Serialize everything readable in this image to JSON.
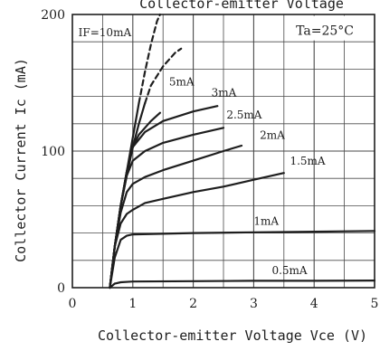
{
  "chart_data": {
    "type": "line",
    "title": "Collector-emitter Voltage",
    "xlabel": "Collector-emitter Voltage Vce (V)",
    "ylabel": "Collector Current Ic (mA)",
    "xlim": [
      0,
      5
    ],
    "ylim": [
      0,
      200
    ],
    "x_ticks": [
      "0",
      "1",
      "2",
      "3",
      "4",
      "5"
    ],
    "y_ticks": [
      "0",
      "100",
      "200"
    ],
    "grid": true,
    "annotation": "Ta=25°C",
    "series": [
      {
        "name": "IF=10mA",
        "dashed_from": 1.1,
        "points": [
          [
            0.62,
            0
          ],
          [
            0.7,
            30
          ],
          [
            0.8,
            60
          ],
          [
            0.9,
            85
          ],
          [
            1.0,
            110
          ],
          [
            1.1,
            135
          ],
          [
            1.2,
            158
          ],
          [
            1.3,
            178
          ],
          [
            1.4,
            195
          ],
          [
            1.45,
            200
          ]
        ]
      },
      {
        "name": "IF=10mA",
        "dashed_from": 1.2,
        "points": [
          [
            0.62,
            0
          ],
          [
            0.7,
            30
          ],
          [
            0.8,
            60
          ],
          [
            0.9,
            82
          ],
          [
            1.0,
            103
          ],
          [
            1.1,
            120
          ],
          [
            1.2,
            135
          ],
          [
            1.3,
            148
          ],
          [
            1.5,
            162
          ],
          [
            1.7,
            172
          ],
          [
            1.8,
            175
          ]
        ]
      },
      {
        "name": "5mA",
        "points": [
          [
            0.62,
            0
          ],
          [
            0.7,
            30
          ],
          [
            0.8,
            60
          ],
          [
            0.9,
            85
          ],
          [
            1.0,
            103
          ],
          [
            1.1,
            112
          ],
          [
            1.2,
            117
          ],
          [
            1.3,
            122
          ],
          [
            1.45,
            128
          ]
        ]
      },
      {
        "name": "3mA",
        "points": [
          [
            0.62,
            0
          ],
          [
            0.7,
            30
          ],
          [
            0.8,
            60
          ],
          [
            0.9,
            85
          ],
          [
            1.0,
            103
          ],
          [
            1.2,
            114
          ],
          [
            1.5,
            122
          ],
          [
            2.0,
            129
          ],
          [
            2.4,
            133
          ]
        ]
      },
      {
        "name": "2.5mA",
        "points": [
          [
            0.62,
            0
          ],
          [
            0.7,
            30
          ],
          [
            0.8,
            60
          ],
          [
            0.9,
            82
          ],
          [
            1.0,
            93
          ],
          [
            1.2,
            100
          ],
          [
            1.5,
            106
          ],
          [
            2.0,
            112
          ],
          [
            2.5,
            117
          ]
        ]
      },
      {
        "name": "2mA",
        "points": [
          [
            0.62,
            0
          ],
          [
            0.7,
            30
          ],
          [
            0.8,
            55
          ],
          [
            0.9,
            70
          ],
          [
            1.0,
            76
          ],
          [
            1.2,
            81
          ],
          [
            1.5,
            86
          ],
          [
            2.0,
            93
          ],
          [
            2.5,
            100
          ],
          [
            2.8,
            104
          ]
        ]
      },
      {
        "name": "1.5mA",
        "points": [
          [
            0.62,
            0
          ],
          [
            0.7,
            30
          ],
          [
            0.8,
            47
          ],
          [
            0.9,
            54
          ],
          [
            1.0,
            57
          ],
          [
            1.2,
            62
          ],
          [
            1.5,
            65
          ],
          [
            2.0,
            70
          ],
          [
            2.5,
            74
          ],
          [
            3.0,
            79
          ],
          [
            3.5,
            84
          ]
        ]
      },
      {
        "name": "1mA",
        "points": [
          [
            0.62,
            0
          ],
          [
            0.7,
            22
          ],
          [
            0.8,
            35
          ],
          [
            0.9,
            38
          ],
          [
            1.0,
            39
          ],
          [
            1.5,
            39.5
          ],
          [
            2.0,
            40
          ],
          [
            3.0,
            40.5
          ],
          [
            4.0,
            41
          ],
          [
            5.0,
            41.5
          ]
        ]
      },
      {
        "name": "0.5mA",
        "points": [
          [
            0.62,
            0
          ],
          [
            0.7,
            3
          ],
          [
            0.8,
            4
          ],
          [
            1.0,
            4.5
          ],
          [
            2.0,
            4.8
          ],
          [
            3.0,
            5
          ],
          [
            4.0,
            5
          ],
          [
            5.0,
            5.2
          ]
        ]
      }
    ],
    "curve_labels": [
      {
        "text": "IF=10mA",
        "x": 0.1,
        "y": 184
      },
      {
        "text": "5mA",
        "x": 1.6,
        "y": 148
      },
      {
        "text": "3mA",
        "x": 2.3,
        "y": 140
      },
      {
        "text": "2.5mA",
        "x": 2.55,
        "y": 124
      },
      {
        "text": "2mA",
        "x": 3.1,
        "y": 109
      },
      {
        "text": "1.5mA",
        "x": 3.6,
        "y": 90
      },
      {
        "text": "1mA",
        "x": 3.0,
        "y": 46
      },
      {
        "text": "0.5mA",
        "x": 3.3,
        "y": 10
      }
    ]
  }
}
